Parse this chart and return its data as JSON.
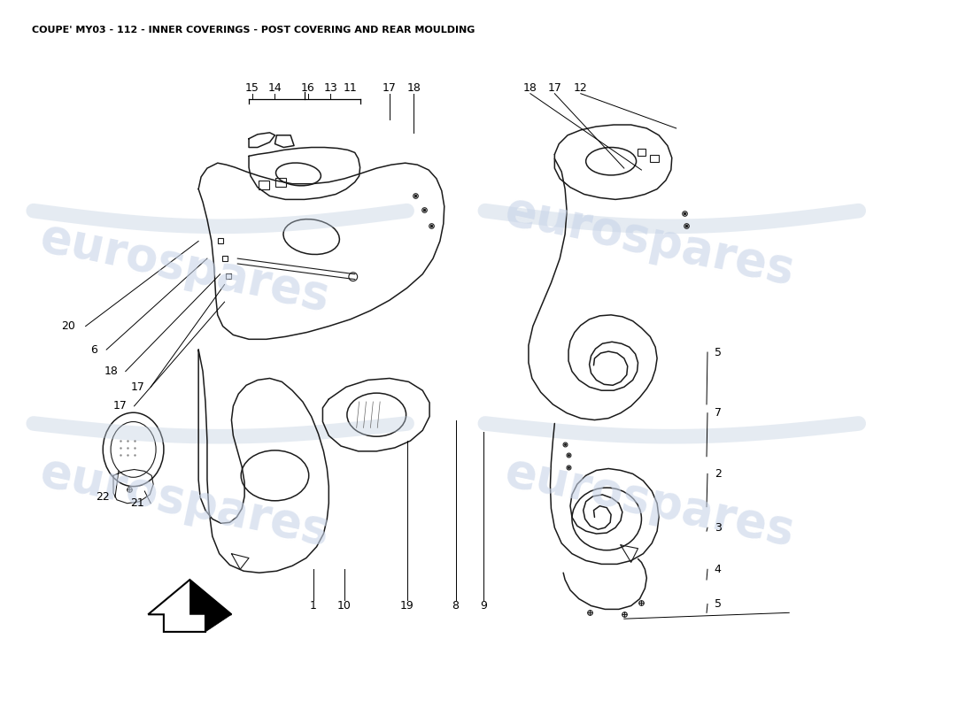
{
  "title": "COUPE' MY03 - 112 - INNER COVERINGS - POST COVERING AND REAR MOULDING",
  "title_fontsize": 8,
  "background_color": "#ffffff",
  "watermark_text": "eurospares",
  "watermark_color": "#c8d4e8",
  "watermark_fontsize": 38,
  "line_color": "#000000",
  "drawing_line_color": "#1a1a1a"
}
